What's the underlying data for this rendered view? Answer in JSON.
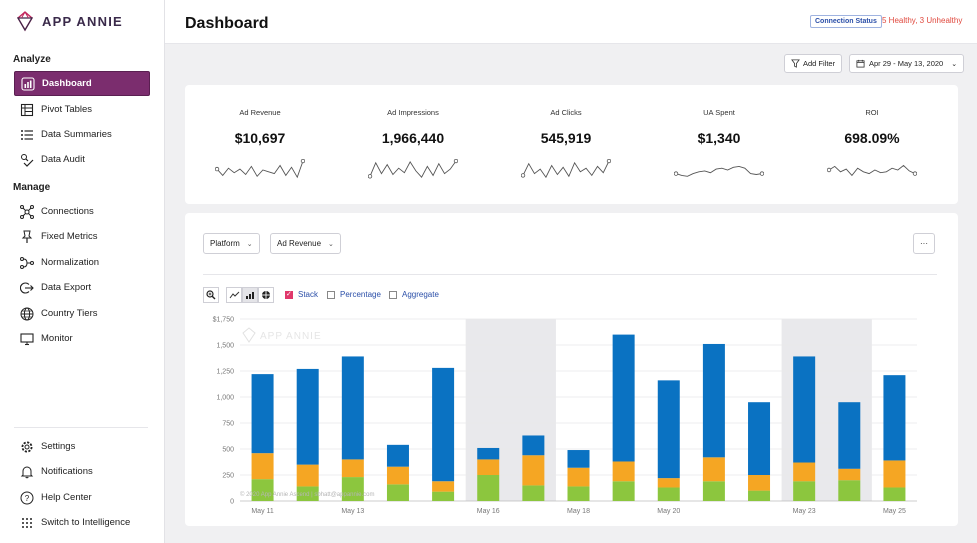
{
  "brand": {
    "name": "APP ANNIE"
  },
  "sidebar": {
    "analyze_label": "Analyze",
    "analyze_items": [
      {
        "label": "Dashboard",
        "icon": "bar-chart-icon",
        "active": true
      },
      {
        "label": "Pivot Tables",
        "icon": "table-icon"
      },
      {
        "label": "Data Summaries",
        "icon": "list-icon"
      },
      {
        "label": "Data Audit",
        "icon": "audit-icon"
      }
    ],
    "manage_label": "Manage",
    "manage_items": [
      {
        "label": "Connections",
        "icon": "network-icon"
      },
      {
        "label": "Fixed Metrics",
        "icon": "pin-icon"
      },
      {
        "label": "Normalization",
        "icon": "flow-icon"
      },
      {
        "label": "Data Export",
        "icon": "export-icon"
      },
      {
        "label": "Country Tiers",
        "icon": "globe-icon"
      },
      {
        "label": "Monitor",
        "icon": "monitor-icon"
      }
    ],
    "bottom_items": [
      {
        "label": "Settings",
        "icon": "gear-icon"
      },
      {
        "label": "Notifications",
        "icon": "bell-icon"
      },
      {
        "label": "Help Center",
        "icon": "help-icon"
      },
      {
        "label": "Switch to Intelligence",
        "icon": "grid-icon"
      }
    ]
  },
  "header": {
    "title": "Dashboard",
    "connection_status_label": "Connection Status",
    "connection_status_text": "5 Healthy, 3 Unhealthy"
  },
  "toolbar": {
    "add_filter_label": "Add Filter",
    "date_range": "Apr 29 - May 13, 2020"
  },
  "kpis": [
    {
      "label": "Ad Revenue",
      "value": "$10,697",
      "spark": [
        0.55,
        0.2,
        0.6,
        0.35,
        0.55,
        0.25,
        0.7,
        0.15,
        0.5,
        0.4,
        0.3,
        0.75,
        0.2,
        0.65,
        0.1,
        1.0
      ]
    },
    {
      "label": "Ad Impressions",
      "value": "1,966,440",
      "spark": [
        0.15,
        0.9,
        0.3,
        0.8,
        0.25,
        0.6,
        0.35,
        0.95,
        0.45,
        0.1,
        0.7,
        0.2,
        0.85,
        0.3,
        0.55,
        1.0
      ]
    },
    {
      "label": "Ad Clicks",
      "value": "545,919",
      "spark": [
        0.2,
        0.85,
        0.3,
        0.55,
        0.1,
        0.75,
        0.25,
        0.65,
        0.15,
        0.9,
        0.4,
        0.6,
        0.2,
        0.7,
        0.35,
        1.0
      ]
    },
    {
      "label": "UA Spent",
      "value": "$1,340",
      "spark": [
        0.3,
        0.2,
        0.15,
        0.3,
        0.4,
        0.45,
        0.35,
        0.55,
        0.6,
        0.5,
        0.65,
        0.7,
        0.6,
        0.3,
        0.25,
        0.3
      ]
    },
    {
      "label": "ROI",
      "value": "698.09%",
      "spark": [
        0.5,
        0.7,
        0.4,
        0.55,
        0.2,
        0.6,
        0.4,
        0.3,
        0.5,
        0.35,
        0.4,
        0.6,
        0.5,
        0.75,
        0.45,
        0.3
      ]
    }
  ],
  "chart_controls": {
    "platform_label": "Platform",
    "metric_label": "Ad Revenue",
    "more_label": "···",
    "stack_label": "Stack",
    "percentage_label": "Percentage",
    "aggregate_label": "Aggregate"
  },
  "chart_data": {
    "type": "bar",
    "stacked": true,
    "watermark": "APP ANNIE",
    "footer_credit": "© 2020 App Annie Ascend | sbhatt@appannie.com",
    "y_ticks": [
      "$1,750",
      "1,500",
      "1,250",
      "1,000",
      "750",
      "500",
      "250",
      "0"
    ],
    "ylim": [
      0,
      1750
    ],
    "x_labels": [
      {
        "index": 0,
        "label": "May 11"
      },
      {
        "index": 2,
        "label": "May 13"
      },
      {
        "index": 5,
        "label": "May 16"
      },
      {
        "index": 7,
        "label": "May 18"
      },
      {
        "index": 9,
        "label": "May 20"
      },
      {
        "index": 12,
        "label": "May 23"
      },
      {
        "index": 14,
        "label": "May 25"
      }
    ],
    "weekend_bands": [
      [
        5,
        6
      ],
      [
        12,
        13
      ]
    ],
    "colors": {
      "green": "#8cc63e",
      "orange": "#f5a623",
      "blue": "#0a72c2"
    },
    "series": [
      {
        "color": "green",
        "values": [
          210,
          140,
          230,
          160,
          90,
          250,
          150,
          140,
          190,
          130,
          190,
          100,
          190,
          200,
          130
        ]
      },
      {
        "color": "orange",
        "values": [
          250,
          210,
          170,
          170,
          100,
          150,
          290,
          180,
          190,
          90,
          230,
          150,
          180,
          110,
          260
        ]
      },
      {
        "color": "blue",
        "values": [
          760,
          920,
          990,
          210,
          1090,
          110,
          190,
          170,
          1220,
          940,
          1090,
          700,
          1020,
          640,
          820
        ]
      }
    ]
  }
}
